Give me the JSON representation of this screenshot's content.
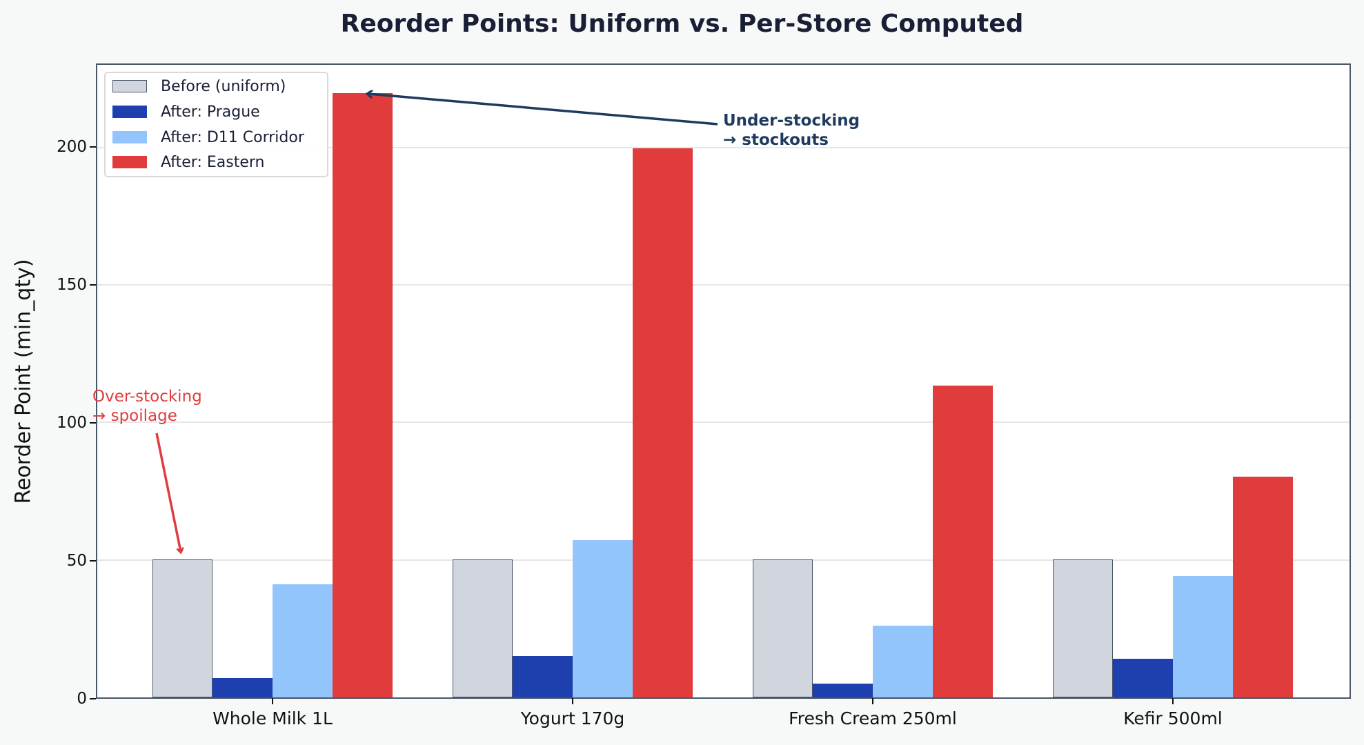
{
  "chart_data": {
    "type": "bar",
    "title": "Reorder Points: Uniform vs. Per-Store Computed",
    "xlabel": "",
    "ylabel": "Reorder Point (min_qty)",
    "ylim": [
      0,
      230
    ],
    "yticks": [
      0,
      50,
      100,
      150,
      200
    ],
    "grid": true,
    "legend_position": "upper left",
    "categories": [
      "Whole Milk 1L",
      "Yogurt 170g",
      "Fresh Cream 250ml",
      "Kefir 500ml"
    ],
    "series": [
      {
        "name": "Before (uniform)",
        "color": "#d1d5de",
        "values": [
          50,
          50,
          50,
          50
        ]
      },
      {
        "name": "After: Prague",
        "color": "#1e40af",
        "values": [
          7,
          15,
          5,
          14
        ]
      },
      {
        "name": "After: D11 Corridor",
        "color": "#93c5fd",
        "values": [
          41,
          57,
          26,
          44
        ]
      },
      {
        "name": "After: Eastern",
        "color": "#e03c3c",
        "values": [
          219,
          199,
          113,
          80
        ]
      }
    ],
    "annotations": [
      {
        "text_line1": "Over-stocking",
        "text_line2": "→ spoilage",
        "color": "#e03c3c",
        "points_to": "Whole Milk 1L / Before (uniform)"
      },
      {
        "text_line1": "Under-stocking",
        "text_line2": "→ stockouts",
        "color": "#1e3a5f",
        "points_to": "Whole Milk 1L / After: Eastern"
      }
    ]
  }
}
